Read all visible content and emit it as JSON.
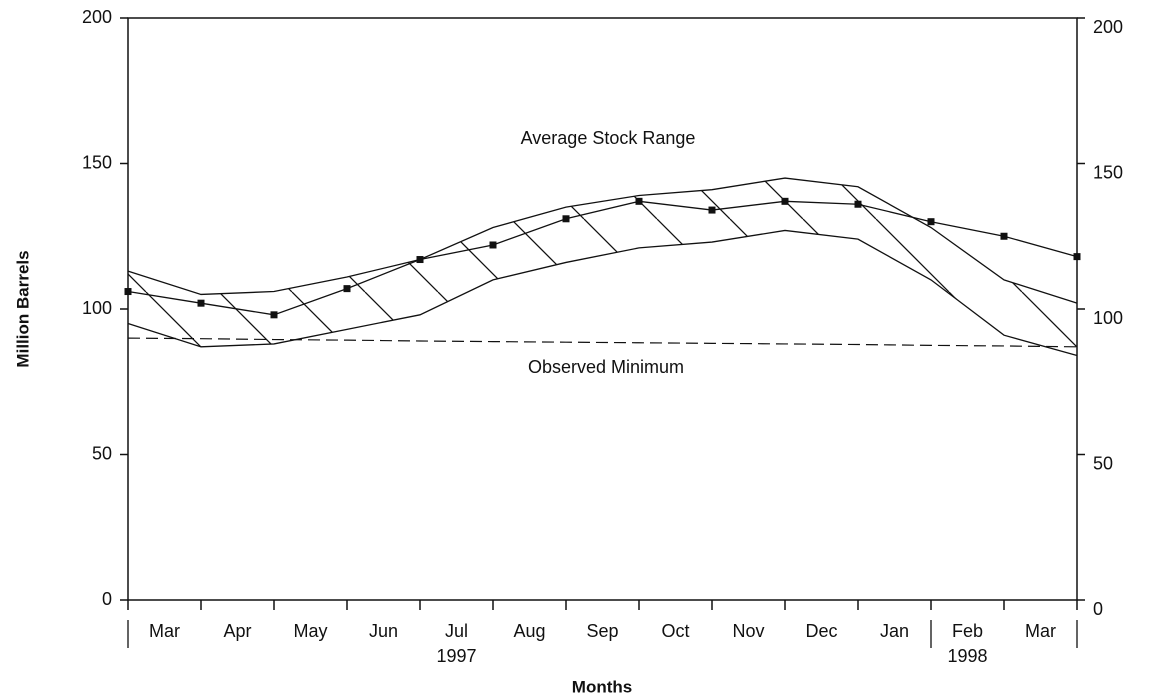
{
  "chart_data": {
    "type": "line",
    "ylabel": "Million Barrels",
    "xlabel": "Months",
    "categories": [
      null,
      "Mar",
      "Apr",
      "May",
      "Jun",
      "Jul",
      "Aug",
      "Sep",
      "Oct",
      "Nov",
      "Dec",
      "Jan",
      "Feb",
      "Mar"
    ],
    "years": [
      "1997",
      "1998"
    ],
    "series": [
      {
        "color": "#111111",
        "values": [
          106,
          102,
          98,
          107,
          117,
          122,
          131,
          137,
          134,
          137,
          136,
          130,
          125,
          118
        ]
      }
    ],
    "band": {
      "label": "Average Stock Range",
      "upper": [
        113,
        105,
        106,
        111,
        117,
        128,
        135,
        139,
        141,
        145,
        142,
        128,
        110,
        102
      ],
      "lower": [
        95,
        87,
        88,
        93,
        98,
        110,
        116,
        121,
        123,
        127,
        124,
        110,
        91,
        84
      ]
    },
    "minimum": {
      "label": "Observed Minimum",
      "values": [
        90,
        89.8,
        89.5,
        89.3,
        89,
        88.8,
        88.6,
        88.4,
        88.2,
        88,
        87.8,
        87.5,
        87.3,
        87
      ]
    },
    "ylim": [
      0,
      200
    ],
    "yticks": [
      0,
      50,
      100,
      150,
      200
    ],
    "y2lim": [
      0,
      200
    ],
    "y2ticks": [
      0,
      50,
      100,
      150,
      200
    ]
  }
}
